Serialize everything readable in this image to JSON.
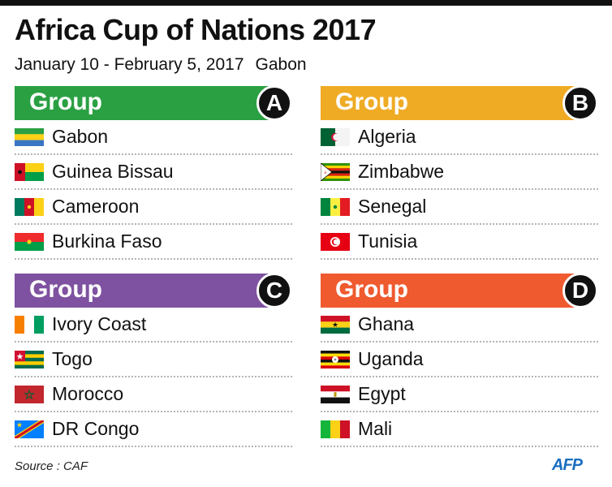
{
  "title": "Africa Cup of Nations 2017",
  "subtitle": {
    "dates": "January 10 - February 5, 2017",
    "host": "Gabon"
  },
  "groups": [
    {
      "label": "Group",
      "letter": "A",
      "color": "#2aa043",
      "teams": [
        {
          "name": "Gabon",
          "flag": "gabon-flag-icon"
        },
        {
          "name": "Guinea Bissau",
          "flag": "guinea-bissau-flag-icon"
        },
        {
          "name": "Cameroon",
          "flag": "cameroon-flag-icon"
        },
        {
          "name": "Burkina Faso",
          "flag": "burkina-faso-flag-icon"
        }
      ]
    },
    {
      "label": "Group",
      "letter": "B",
      "color": "#efab24",
      "teams": [
        {
          "name": "Algeria",
          "flag": "algeria-flag-icon"
        },
        {
          "name": "Zimbabwe",
          "flag": "zimbabwe-flag-icon"
        },
        {
          "name": "Senegal",
          "flag": "senegal-flag-icon"
        },
        {
          "name": "Tunisia",
          "flag": "tunisia-flag-icon"
        }
      ]
    },
    {
      "label": "Group",
      "letter": "C",
      "color": "#7e52a0",
      "teams": [
        {
          "name": "Ivory Coast",
          "flag": "ivory-coast-flag-icon"
        },
        {
          "name": "Togo",
          "flag": "togo-flag-icon"
        },
        {
          "name": "Morocco",
          "flag": "morocco-flag-icon"
        },
        {
          "name": "DR Congo",
          "flag": "dr-congo-flag-icon"
        }
      ]
    },
    {
      "label": "Group",
      "letter": "D",
      "color": "#ef5a2f",
      "teams": [
        {
          "name": "Ghana",
          "flag": "ghana-flag-icon"
        },
        {
          "name": "Uganda",
          "flag": "uganda-flag-icon"
        },
        {
          "name": "Egypt",
          "flag": "egypt-flag-icon"
        },
        {
          "name": "Mali",
          "flag": "mali-flag-icon"
        }
      ]
    }
  ],
  "source": "Source : CAF",
  "logo": "AFP"
}
